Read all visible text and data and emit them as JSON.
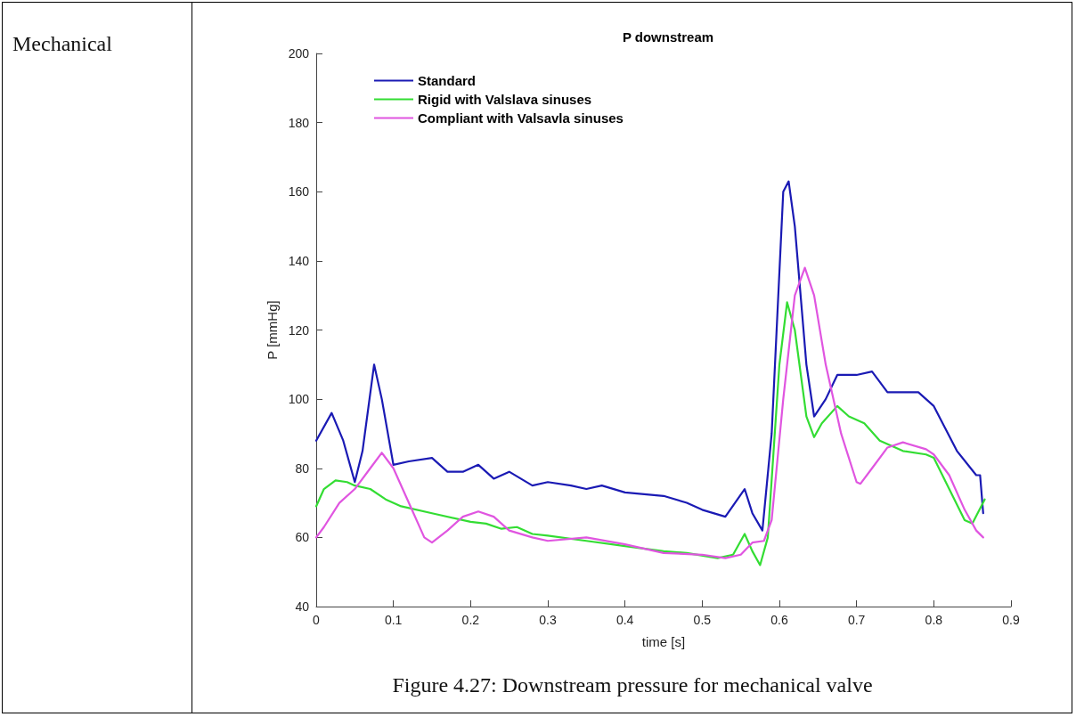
{
  "chart_data": {
    "type": "line",
    "title": "P downstream",
    "xlabel": "time [s]",
    "ylabel": "P [mmHg]",
    "annotations": [
      "Mechanical",
      "Figure 4.27: Downstream pressure for mechanical valve"
    ],
    "xlim": [
      0,
      0.9
    ],
    "xticks": [
      0,
      0.1,
      0.2,
      0.3,
      0.4,
      0.5,
      0.6,
      0.7,
      0.8,
      0.9
    ],
    "ylim": [
      40,
      200
    ],
    "yticks": [
      40,
      60,
      80,
      100,
      120,
      140,
      160,
      180,
      200
    ],
    "grid": false,
    "legend": "top left",
    "marker": "none",
    "line_style": "solid",
    "series": [
      {
        "name": "Standard",
        "color": "#1a1ab4",
        "x": [
          0,
          0.02,
          0.035,
          0.05,
          0.06,
          0.075,
          0.085,
          0.1,
          0.12,
          0.15,
          0.17,
          0.19,
          0.21,
          0.23,
          0.25,
          0.28,
          0.3,
          0.33,
          0.35,
          0.37,
          0.4,
          0.45,
          0.48,
          0.5,
          0.53,
          0.555,
          0.565,
          0.578,
          0.59,
          0.605,
          0.612,
          0.62,
          0.635,
          0.645,
          0.66,
          0.675,
          0.7,
          0.72,
          0.74,
          0.76,
          0.78,
          0.8,
          0.83,
          0.855,
          0.86,
          0.864
        ],
        "values": [
          88,
          96,
          88,
          76,
          85,
          110,
          100,
          81,
          82,
          83,
          79,
          79,
          81,
          77,
          79,
          75,
          76,
          75,
          74,
          75,
          73,
          72,
          70,
          68,
          66,
          74,
          67,
          62,
          90,
          160,
          163,
          150,
          110,
          95,
          100,
          107,
          107,
          108,
          102,
          102,
          102,
          98,
          85,
          78,
          78,
          67
        ]
      },
      {
        "name": "Rigid with Valslava sinuses",
        "color": "#33dd33",
        "x": [
          0,
          0.01,
          0.025,
          0.04,
          0.05,
          0.07,
          0.09,
          0.11,
          0.15,
          0.2,
          0.22,
          0.24,
          0.26,
          0.28,
          0.3,
          0.35,
          0.4,
          0.45,
          0.48,
          0.52,
          0.54,
          0.555,
          0.565,
          0.575,
          0.585,
          0.6,
          0.61,
          0.62,
          0.635,
          0.645,
          0.655,
          0.675,
          0.69,
          0.71,
          0.73,
          0.76,
          0.79,
          0.8,
          0.82,
          0.84,
          0.85,
          0.866
        ],
        "values": [
          69,
          74,
          76.5,
          76,
          75,
          74,
          71,
          69,
          67,
          64.5,
          64,
          62.5,
          63,
          61,
          60.5,
          59,
          57.5,
          56,
          55.5,
          54,
          55,
          61,
          56,
          52,
          60,
          110,
          128,
          120,
          95,
          89,
          93,
          98,
          95,
          93,
          88,
          85,
          84,
          83,
          74,
          65,
          64,
          71
        ]
      },
      {
        "name": "Compliant with Valsavla sinuses",
        "color": "#e055e0",
        "x": [
          0,
          0.01,
          0.03,
          0.05,
          0.07,
          0.085,
          0.1,
          0.12,
          0.14,
          0.15,
          0.17,
          0.19,
          0.21,
          0.23,
          0.25,
          0.28,
          0.3,
          0.35,
          0.4,
          0.45,
          0.5,
          0.53,
          0.55,
          0.565,
          0.58,
          0.59,
          0.605,
          0.62,
          0.633,
          0.645,
          0.66,
          0.68,
          0.7,
          0.705,
          0.72,
          0.74,
          0.76,
          0.79,
          0.8,
          0.82,
          0.84,
          0.855,
          0.864
        ],
        "values": [
          60,
          63,
          70,
          74,
          80,
          84.5,
          80,
          70,
          60,
          58.5,
          62,
          66,
          67.5,
          66,
          62,
          60,
          59,
          60,
          58,
          55.5,
          55,
          54,
          55,
          58.5,
          59,
          65,
          100,
          130,
          138,
          130,
          110,
          90,
          76,
          75.5,
          80,
          86,
          87.5,
          85.5,
          84,
          78,
          68,
          62,
          60
        ]
      }
    ]
  }
}
